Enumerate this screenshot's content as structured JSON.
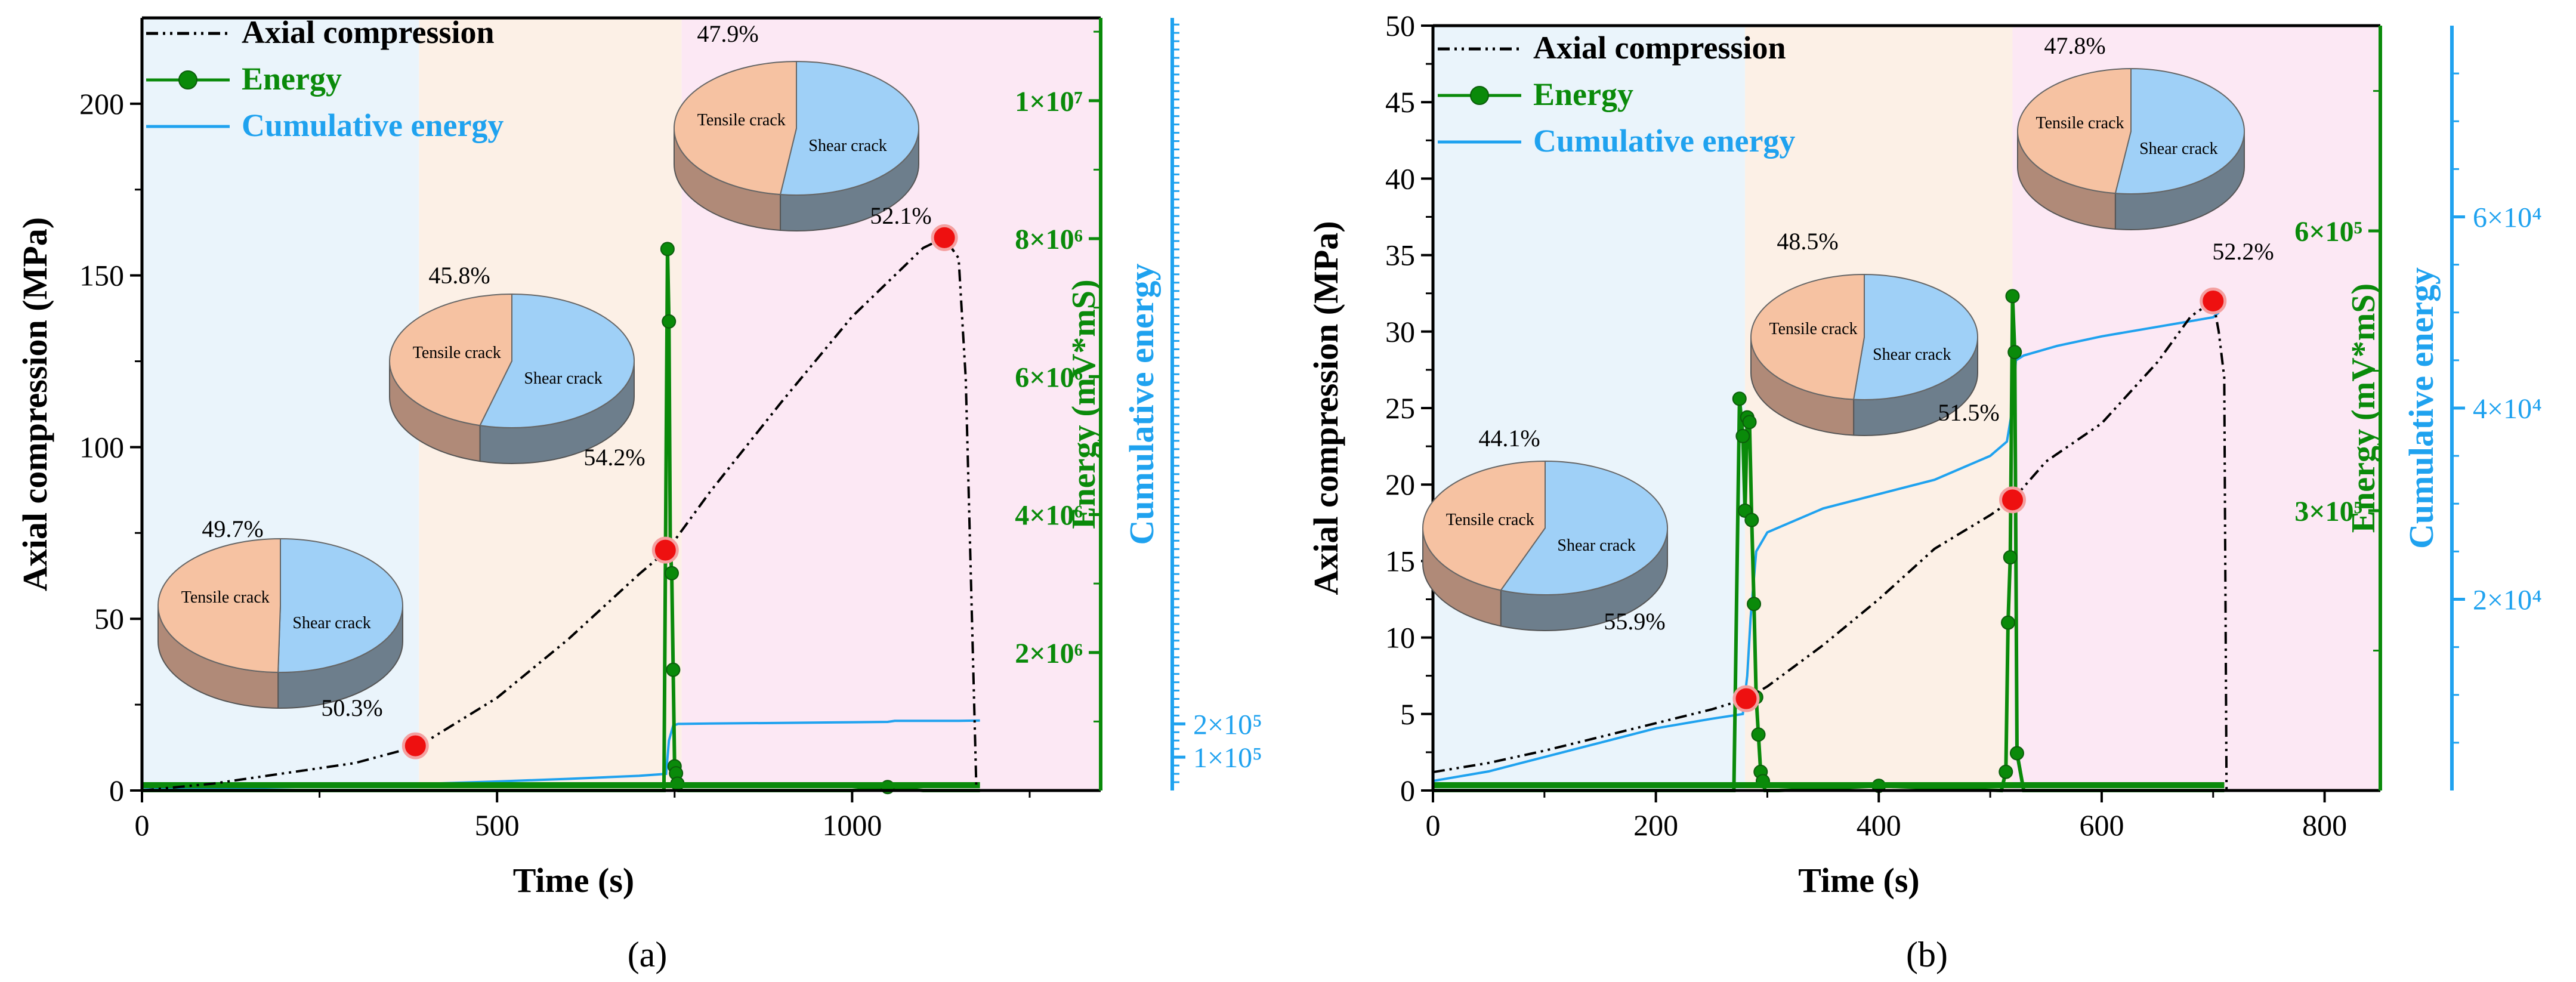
{
  "colors": {
    "axial": "#000000",
    "energy": "#0a8a0a",
    "cumulative": "#1fa2ef",
    "stage1": "#eaf4fb",
    "stage2": "#fcf0e6",
    "stage3": "#fce8f4",
    "tensile": "#f6c2a2",
    "tensile_side": "#b08a78",
    "shear": "#9fd0f7",
    "shear_side": "#6d7e8c",
    "marker": "#ee1010"
  },
  "chart_data": [
    {
      "type": "line",
      "panel_label": "(a)",
      "xlabel": "Time (s)",
      "ylabel": "Axial compression (MPa)",
      "y2label": "Energy (mV*mS)",
      "y3label": "Cumulative energy",
      "xlim": [
        0,
        1350
      ],
      "ylim": [
        0,
        225
      ],
      "y2lim": [
        0,
        11200000
      ],
      "y3lim": [
        0,
        2320000
      ],
      "xticks": [
        0,
        500,
        1000
      ],
      "xtick_labels": [
        "0",
        "500",
        "1000"
      ],
      "yticks": [
        0,
        50,
        100,
        150,
        200
      ],
      "ytick_labels": [
        "0",
        "50",
        "100",
        "150",
        "200"
      ],
      "y2ticks": [
        2000000,
        4000000,
        6000000,
        8000000,
        10000000
      ],
      "y2tick_labels": [
        "2×10⁶",
        "4×10⁶",
        "6×10⁶",
        "8×10⁶",
        "1×10⁷"
      ],
      "y3ticks": [
        100000,
        200000
      ],
      "y3tick_labels": [
        "1×10⁵",
        "2×10⁵"
      ],
      "stages": [
        0,
        390,
        760,
        1350
      ],
      "legend": [
        {
          "label": "Axial compression",
          "style": "dashdot"
        },
        {
          "label": "Energy",
          "style": "marker-line"
        },
        {
          "label": "Cumulative energy",
          "style": "line"
        }
      ],
      "axial": {
        "x": [
          0,
          100,
          200,
          300,
          390,
          500,
          600,
          700,
          740,
          800,
          900,
          1000,
          1100,
          1130,
          1150,
          1160,
          1175
        ],
        "y": [
          0,
          2,
          5,
          8,
          13,
          27,
          44,
          63,
          70,
          87,
          113,
          138,
          158,
          161,
          155,
          120,
          0
        ]
      },
      "cumulative": {
        "x": [
          0,
          100,
          200,
          300,
          400,
          500,
          600,
          700,
          738,
          742,
          748,
          755,
          800,
          900,
          1000,
          1050,
          1060,
          1150,
          1180
        ],
        "y": [
          3000,
          6000,
          10000,
          14000,
          20000,
          27000,
          35000,
          44000,
          50000,
          150000,
          195000,
          200000,
          201000,
          203000,
          205000,
          206000,
          209000,
          209000,
          210000
        ]
      },
      "energy": {
        "x": [
          0,
          100,
          300,
          500,
          700,
          730,
          735,
          740,
          742,
          744,
          746,
          748,
          750,
          752,
          754,
          756,
          760,
          800,
          1000,
          1050,
          1100,
          1180
        ],
        "y": [
          0,
          0,
          0,
          0,
          0,
          0,
          0,
          7850000,
          6800000,
          3500000,
          3150000,
          1750000,
          350000,
          250000,
          100000,
          0,
          0,
          0,
          0,
          50000,
          0,
          0
        ]
      },
      "peaks": [
        {
          "x": 385,
          "y": 13
        },
        {
          "x": 737,
          "y": 70
        },
        {
          "x": 1130,
          "y": 161
        }
      ],
      "pies": [
        {
          "tensile_pct": 49.7,
          "shear_pct": 50.3,
          "tensile_label": "Tensile crack",
          "shear_label": "Shear crack",
          "top_label": "49.7%",
          "bottom_label": "50.3%"
        },
        {
          "tensile_pct": 45.8,
          "shear_pct": 54.2,
          "tensile_label": "Tensile crack",
          "shear_label": "Shear crack",
          "top_label": "45.8%",
          "bottom_label": "54.2%"
        },
        {
          "tensile_pct": 47.9,
          "shear_pct": 52.1,
          "tensile_label": "Tensile crack",
          "shear_label": "Shear crack",
          "top_label": "47.9%",
          "bottom_label": "52.1%"
        }
      ]
    },
    {
      "type": "line",
      "panel_label": "(b)",
      "xlabel": "Time (s)",
      "ylabel": "Axial compression (MPa)",
      "y2label": "Energy (mV*mS)",
      "y3label": "Cumulative energy",
      "xlim": [
        0,
        850
      ],
      "ylim": [
        0,
        50
      ],
      "y2lim": [
        0,
        820000
      ],
      "y3lim": [
        0,
        80000
      ],
      "xticks": [
        0,
        200,
        400,
        600,
        800
      ],
      "xtick_labels": [
        "0",
        "200",
        "400",
        "600",
        "800"
      ],
      "yticks": [
        0,
        5,
        10,
        15,
        20,
        25,
        30,
        35,
        40,
        45,
        50
      ],
      "ytick_labels": [
        "0",
        "5",
        "10",
        "15",
        "20",
        "25",
        "30",
        "35",
        "40",
        "45",
        "50"
      ],
      "y2ticks": [
        300000,
        600000
      ],
      "y2tick_labels": [
        "3×10⁵",
        "6×10⁵"
      ],
      "y3ticks": [
        20000,
        40000,
        60000
      ],
      "y3tick_labels": [
        "2×10⁴",
        "4×10⁴",
        "6×10⁴"
      ],
      "stages": [
        0,
        280,
        520,
        850
      ],
      "legend": [
        {
          "label": "Axial compression",
          "style": "dashdot"
        },
        {
          "label": "Energy",
          "style": "marker-line"
        },
        {
          "label": "Cumulative energy",
          "style": "line"
        }
      ],
      "axial": {
        "x": [
          0,
          50,
          100,
          150,
          200,
          250,
          281,
          300,
          350,
          400,
          450,
          500,
          520,
          550,
          600,
          650,
          680,
          700,
          705,
          710,
          712
        ],
        "y": [
          1.2,
          1.8,
          2.6,
          3.5,
          4.4,
          5.3,
          6,
          6.8,
          9.5,
          12.5,
          15.8,
          18,
          19,
          21.5,
          24,
          28,
          31,
          32,
          30,
          27,
          0
        ]
      },
      "cumulative": {
        "x": [
          0,
          50,
          100,
          150,
          200,
          250,
          278,
          282,
          285,
          290,
          300,
          320,
          350,
          400,
          450,
          500,
          515,
          520,
          523,
          530,
          560,
          600,
          650,
          700,
          705
        ],
        "y": [
          1000,
          2000,
          3500,
          5000,
          6500,
          7500,
          8000,
          12000,
          18000,
          25000,
          27000,
          28000,
          29500,
          31000,
          32500,
          35000,
          36500,
          40000,
          45000,
          45500,
          46500,
          47500,
          48500,
          49500,
          50000
        ]
      },
      "energy": {
        "x": [
          0,
          100,
          270,
          275,
          278,
          280,
          282,
          284,
          286,
          288,
          290,
          292,
          294,
          296,
          298,
          300,
          310,
          400,
          510,
          514,
          516,
          518,
          520,
          522,
          524,
          530,
          600,
          700,
          710
        ],
        "y": [
          0,
          0,
          0,
          420000,
          380000,
          300000,
          400000,
          395000,
          290000,
          200000,
          100000,
          60000,
          20000,
          10000,
          0,
          0,
          0,
          5000,
          0,
          20000,
          180000,
          250000,
          530000,
          470000,
          40000,
          0,
          0,
          0,
          0
        ]
      },
      "peaks": [
        {
          "x": 281,
          "y": 6
        },
        {
          "x": 520,
          "y": 19
        },
        {
          "x": 700,
          "y": 32
        }
      ],
      "pies": [
        {
          "tensile_pct": 44.1,
          "shear_pct": 55.9,
          "tensile_label": "Tensile crack",
          "shear_label": "Shear crack",
          "top_label": "44.1%",
          "bottom_label": "55.9%"
        },
        {
          "tensile_pct": 48.5,
          "shear_pct": 51.5,
          "tensile_label": "Tensile crack",
          "shear_label": "Shear crack",
          "top_label": "48.5%",
          "bottom_label": "51.5%"
        },
        {
          "tensile_pct": 47.8,
          "shear_pct": 52.2,
          "tensile_label": "Tensile crack",
          "shear_label": "Shear crack",
          "top_label": "47.8%",
          "bottom_label": "52.2%"
        }
      ]
    }
  ]
}
